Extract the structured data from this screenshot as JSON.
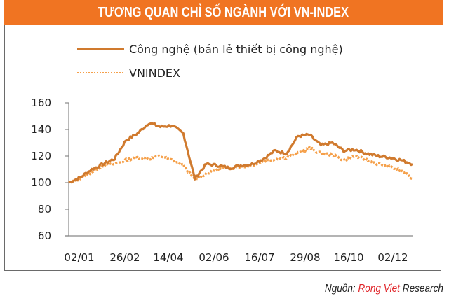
{
  "header": {
    "title": "TƯƠNG QUAN CHỈ SỐ NGÀNH VỚI VN-INDEX"
  },
  "colors": {
    "title_bar": "#F07422",
    "tech_line": "#D07A2E",
    "vnindex_line": "#F5A04A",
    "brand_red": "#E0262B"
  },
  "legend": {
    "items": [
      {
        "label": "Công nghệ (bán lẻ thiết bị công nghệ)",
        "style": "solid"
      },
      {
        "label": "VNINDEX",
        "style": "dotted"
      }
    ]
  },
  "source": {
    "prefix": "Nguồn: ",
    "brand": "Rong Viet",
    "suffix": " Research"
  },
  "chart_data": {
    "type": "line",
    "title": "TƯƠNG QUAN CHỈ SỐ NGÀNH VỚI VN-INDEX",
    "xlabel": "",
    "ylabel": "",
    "ylim": [
      60,
      160
    ],
    "yticks": [
      60,
      80,
      100,
      120,
      140,
      160
    ],
    "x_tick_labels": [
      "02/01",
      "26/02",
      "14/04",
      "02/06",
      "16/07",
      "29/08",
      "16/10",
      "02/12"
    ],
    "grid": false,
    "legend_position": "top-left",
    "x": [
      "02/01",
      "15/01",
      "29/01",
      "12/02",
      "26/02",
      "05/03",
      "14/03",
      "24/03",
      "03/04",
      "14/04",
      "22/04",
      "02/05",
      "12/05",
      "22/05",
      "02/06",
      "16/06",
      "30/06",
      "16/07",
      "30/07",
      "14/08",
      "29/08",
      "10/09",
      "22/09",
      "05/10",
      "16/10",
      "30/10",
      "12/11",
      "22/11",
      "02/12",
      "15/12",
      "25/12"
    ],
    "series": [
      {
        "name": "Công nghệ (bán lẻ thiết bị công nghệ)",
        "values": [
          100,
          104,
          110,
          114,
          118,
          132,
          137,
          145,
          142,
          143,
          137,
          103,
          114,
          113,
          111,
          113,
          114,
          118,
          124,
          122,
          135,
          136,
          128,
          130,
          124,
          125,
          122,
          120,
          119,
          117,
          114
        ]
      },
      {
        "name": "VNINDEX",
        "values": [
          100,
          103,
          108,
          113,
          114,
          117,
          119,
          118,
          120,
          117,
          113,
          102,
          107,
          110,
          111,
          112,
          113,
          116,
          118,
          119,
          122,
          126,
          122,
          121,
          117,
          120,
          117,
          114,
          112,
          109,
          103
        ]
      }
    ]
  }
}
